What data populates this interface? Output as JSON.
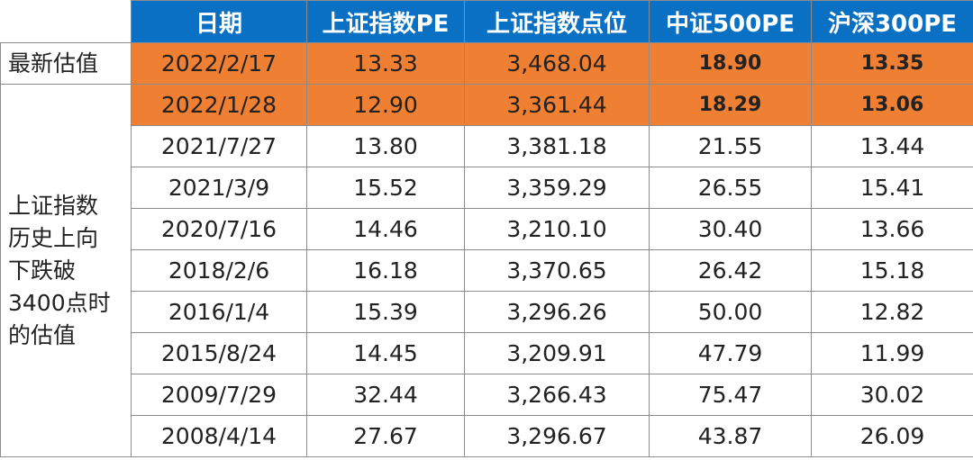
{
  "table": {
    "header": [
      "日期",
      "上证指数PE",
      "上证指数点位",
      "中证500PE",
      "沪深300PE"
    ],
    "groups": [
      {
        "label": [
          "最新估值"
        ],
        "rows": [
          [
            "2022/2/17",
            "13.33",
            "3,468.04",
            "18.90",
            "13.35"
          ]
        ]
      },
      {
        "label": [
          "上证指数",
          "历史上向",
          "下跌破",
          "3400点时",
          "的估值"
        ],
        "rows": [
          [
            "2022/1/28",
            "12.90",
            "3,361.44",
            "18.29",
            "13.06"
          ],
          [
            "2021/7/27",
            "13.80",
            "3,381.18",
            "21.55",
            "13.44"
          ],
          [
            "2021/3/9",
            "15.52",
            "3,359.29",
            "26.55",
            "15.41"
          ],
          [
            "2020/7/16",
            "14.46",
            "3,210.10",
            "30.40",
            "13.66"
          ],
          [
            "2018/2/6",
            "16.18",
            "3,370.65",
            "26.42",
            "15.18"
          ],
          [
            "2016/1/4",
            "15.39",
            "3,296.26",
            "50.00",
            "12.82"
          ],
          [
            "2015/8/24",
            "14.45",
            "3,209.91",
            "47.79",
            "11.99"
          ],
          [
            "2009/7/29",
            "32.44",
            "3,266.43",
            "75.47",
            "30.02"
          ],
          [
            "2008/4/14",
            "27.67",
            "3,296.67",
            "43.87",
            "26.09"
          ]
        ]
      }
    ]
  }
}
